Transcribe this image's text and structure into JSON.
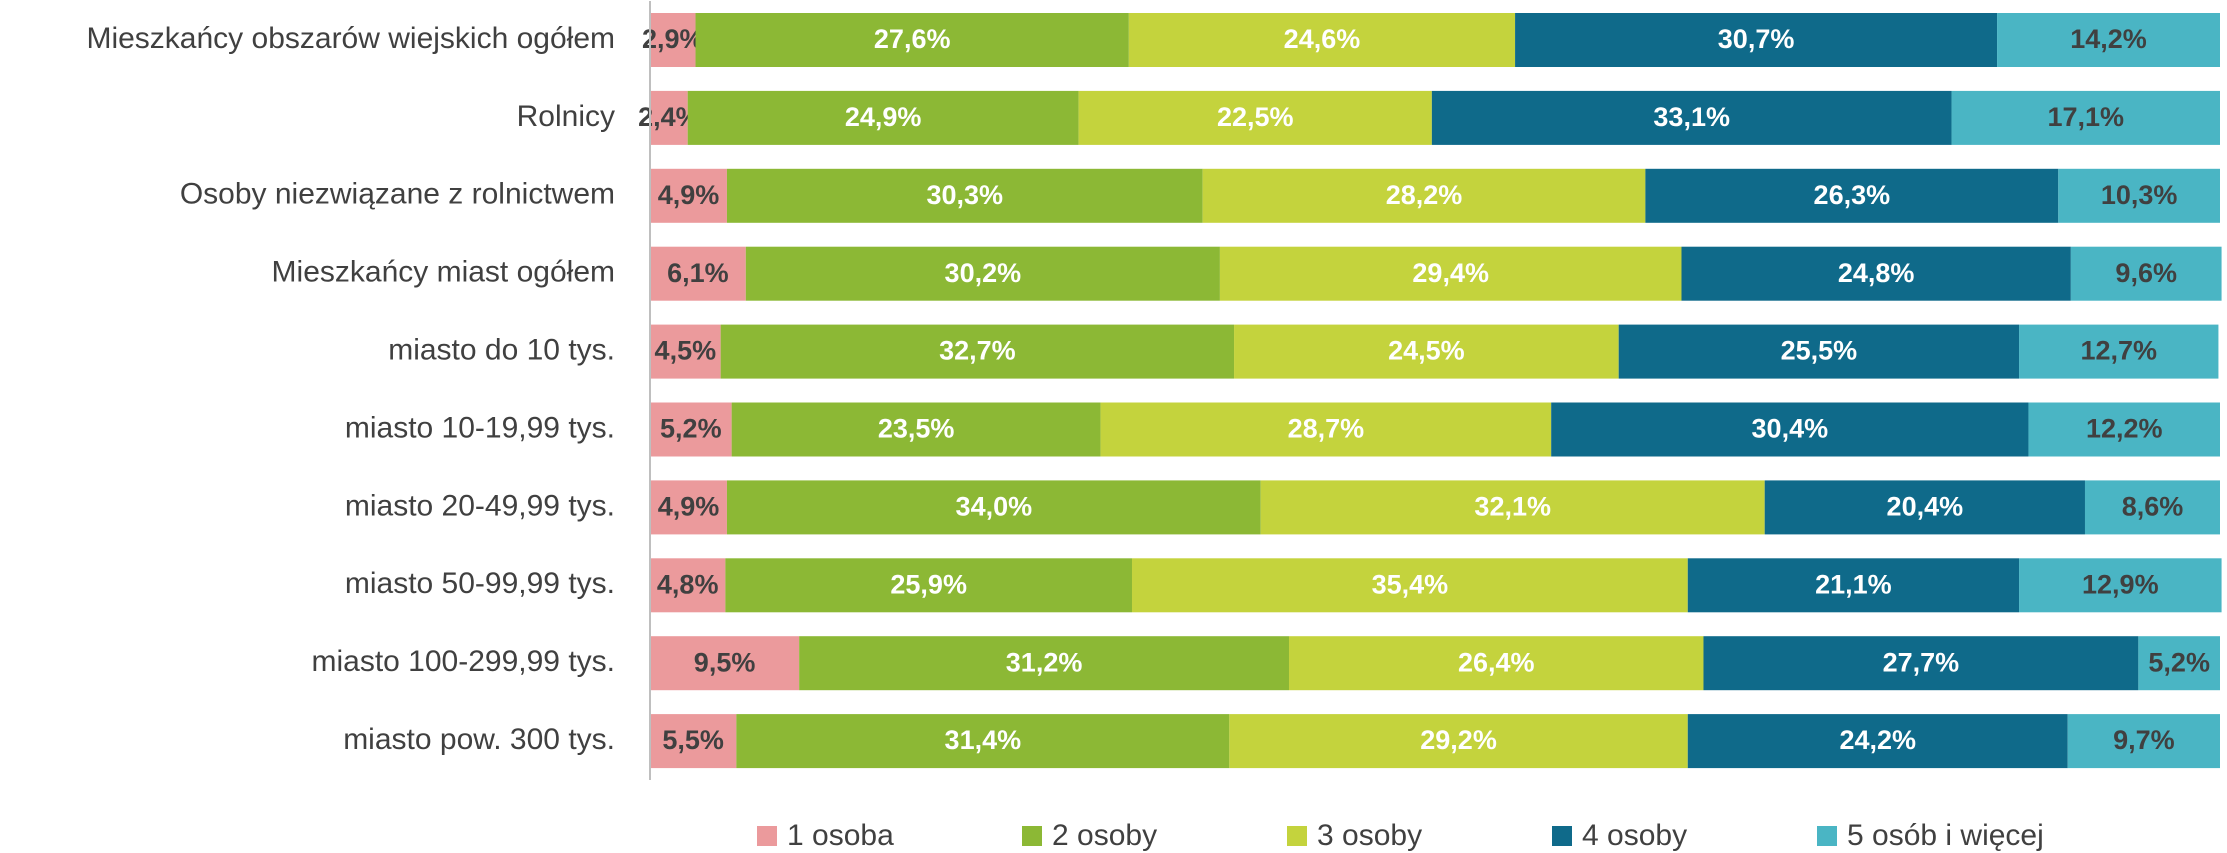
{
  "chart_data": {
    "type": "stacked_barh",
    "categories": [
      "Mieszkańcy obszarów wiejskich ogółem",
      "Rolnicy",
      "Osoby niezwiązane z rolnictwem",
      "Mieszkańcy miast ogółem",
      "miasto do 10 tys.",
      "miasto 10-19,99 tys.",
      "miasto 20-49,99 tys.",
      "miasto 50-99,99 tys.",
      "miasto 100-299,99 tys.",
      "miasto pow. 300 tys."
    ],
    "xlim": [
      0,
      100
    ],
    "series": [
      {
        "name": "1 osoba",
        "color": "#eb9a9c",
        "label_color": "#404040",
        "values": [
          2.9,
          2.4,
          4.9,
          6.1,
          4.5,
          5.2,
          4.9,
          4.8,
          9.5,
          5.5
        ],
        "value_labels": [
          "2,9%",
          "2,4%",
          "4,9%",
          "6,1%",
          "4,5%",
          "5,2%",
          "4,9%",
          "4,8%",
          "9,5%",
          "5,5%"
        ]
      },
      {
        "name": "2 osoby",
        "color": "#8cb835",
        "label_color": "#ffffff",
        "values": [
          27.6,
          24.9,
          30.3,
          30.2,
          32.7,
          23.5,
          34.0,
          25.9,
          31.2,
          31.4
        ],
        "value_labels": [
          "27,6%",
          "24,9%",
          "30,3%",
          "30,2%",
          "32,7%",
          "23,5%",
          "34,0%",
          "25,9%",
          "31,2%",
          "31,4%"
        ]
      },
      {
        "name": "3 osoby",
        "color": "#c4d33d",
        "label_color": "#ffffff",
        "values": [
          24.6,
          22.5,
          28.2,
          29.4,
          24.5,
          28.7,
          32.1,
          35.4,
          26.4,
          29.2
        ],
        "value_labels": [
          "24,6%",
          "22,5%",
          "28,2%",
          "29,4%",
          "24,5%",
          "28,7%",
          "32,1%",
          "35,4%",
          "26,4%",
          "29,2%"
        ]
      },
      {
        "name": "4 osoby",
        "color": "#0f6a8a",
        "label_color": "#ffffff",
        "values": [
          30.7,
          33.1,
          26.3,
          24.8,
          25.5,
          30.4,
          20.4,
          21.1,
          27.7,
          24.2
        ],
        "value_labels": [
          "30,7%",
          "33,1%",
          "26,3%",
          "24,8%",
          "25,5%",
          "30,4%",
          "20,4%",
          "21,1%",
          "27,7%",
          "24,2%"
        ]
      },
      {
        "name": "5 osób i więcej",
        "color": "#4ab5c4",
        "label_color": "#404040",
        "values": [
          14.2,
          17.1,
          10.3,
          9.6,
          12.7,
          12.2,
          8.6,
          12.9,
          5.2,
          9.7
        ],
        "value_labels": [
          "14,2%",
          "17,1%",
          "10,3%",
          "9,6%",
          "12,7%",
          "12,2%",
          "8,6%",
          "12,9%",
          "5,2%",
          "9,7%"
        ]
      }
    ],
    "legend": "bottom"
  }
}
